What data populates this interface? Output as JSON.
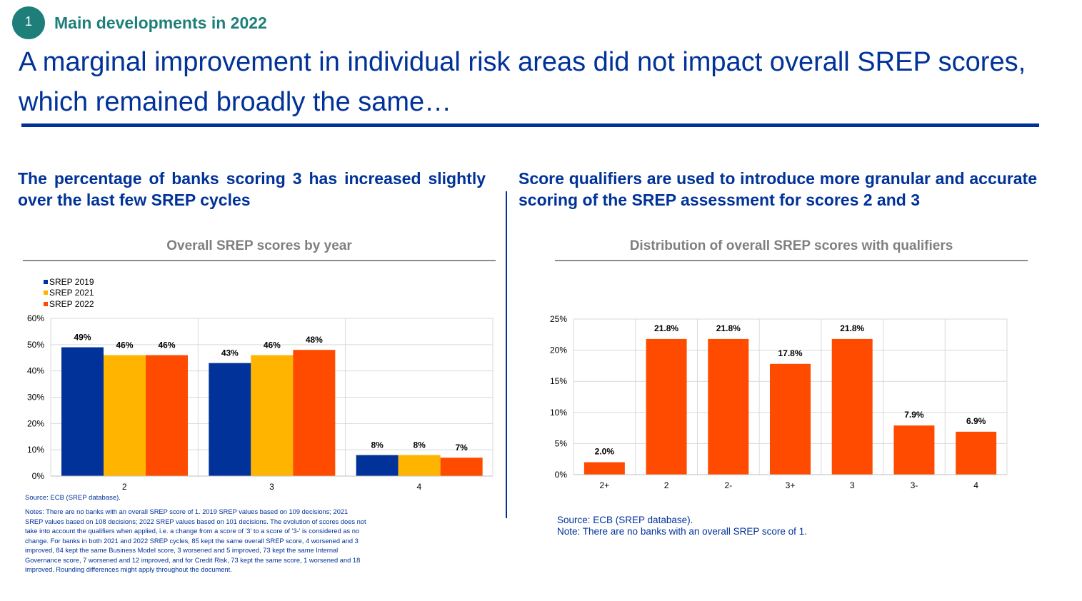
{
  "header": {
    "badge_number": "1",
    "section_title": "Main developments in 2022",
    "main_title": "A marginal improvement in individual risk areas did not impact overall SREP scores, which remained broadly the same…"
  },
  "left_panel": {
    "subtitle": "The percentage of banks scoring 3 has increased slightly over the last few SREP cycles",
    "source": "Source: ECB (SREP database).",
    "notes": "Notes: There are no banks with an overall SREP score of 1. 2019 SREP values based on 109 decisions; 2021 SREP values based on 108 decisions; 2022 SREP values based on 101 decisions. The evolution of scores does not take into account the qualifiers when applied, i.e. a change from a score of '3' to a score of '3-' is considered as no change. For banks in both 2021 and 2022 SREP cycles, 85 kept the same overall SREP score, 4 worsened and 3 improved, 84 kept the same Business Model score, 3 worsened and 5 improved, 73 kept the same Internal Governance score, 7 worsened and 12 improved, and for Credit Risk, 73 kept the same score, 1 worsened and 18 improved. Rounding differences might apply throughout the document."
  },
  "right_panel": {
    "subtitle": "Score qualifiers are used to introduce more granular and accurate scoring of the SREP assessment for scores 2 and 3",
    "source": "Source: ECB (SREP database).",
    "note": "Note: There are no banks with an overall SREP score of 1."
  },
  "colors": {
    "primary_blue": "#003299",
    "teal": "#1e7f7a",
    "srep2019": "#003299",
    "srep2021": "#ffb400",
    "srep2022": "#ff4b00",
    "gray_title": "#7f7f7f"
  },
  "chart_data": [
    {
      "type": "bar",
      "title": "Overall SREP scores by year",
      "categories": [
        "2",
        "3",
        "4"
      ],
      "series": [
        {
          "name": "SREP 2019",
          "values": [
            49,
            43,
            8
          ],
          "labels": [
            "49%",
            "43%",
            "8%"
          ]
        },
        {
          "name": "SREP 2021",
          "values": [
            46,
            46,
            8
          ],
          "labels": [
            "46%",
            "46%",
            "8%"
          ]
        },
        {
          "name": "SREP 2022",
          "values": [
            46,
            48,
            7
          ],
          "labels": [
            "46%",
            "48%",
            "7%"
          ]
        }
      ],
      "ylim": [
        0,
        60
      ],
      "yticks": [
        0,
        10,
        20,
        30,
        40,
        50,
        60
      ],
      "ytick_labels": [
        "0%",
        "10%",
        "20%",
        "30%",
        "40%",
        "50%",
        "60%"
      ],
      "grid": true,
      "legend_position": "top-left"
    },
    {
      "type": "bar",
      "title": "Distribution of overall SREP scores with qualifiers",
      "categories": [
        "2+",
        "2",
        "2-",
        "3+",
        "3",
        "3-",
        "4"
      ],
      "values": [
        2.0,
        21.8,
        21.8,
        17.8,
        21.8,
        7.9,
        6.9
      ],
      "labels": [
        "2.0%",
        "21.8%",
        "21.8%",
        "17.8%",
        "21.8%",
        "7.9%",
        "6.9%"
      ],
      "ylim": [
        0,
        25
      ],
      "yticks": [
        0,
        5,
        10,
        15,
        20,
        25
      ],
      "ytick_labels": [
        "0%",
        "5%",
        "10%",
        "15%",
        "20%",
        "25%"
      ],
      "grid": true
    }
  ]
}
